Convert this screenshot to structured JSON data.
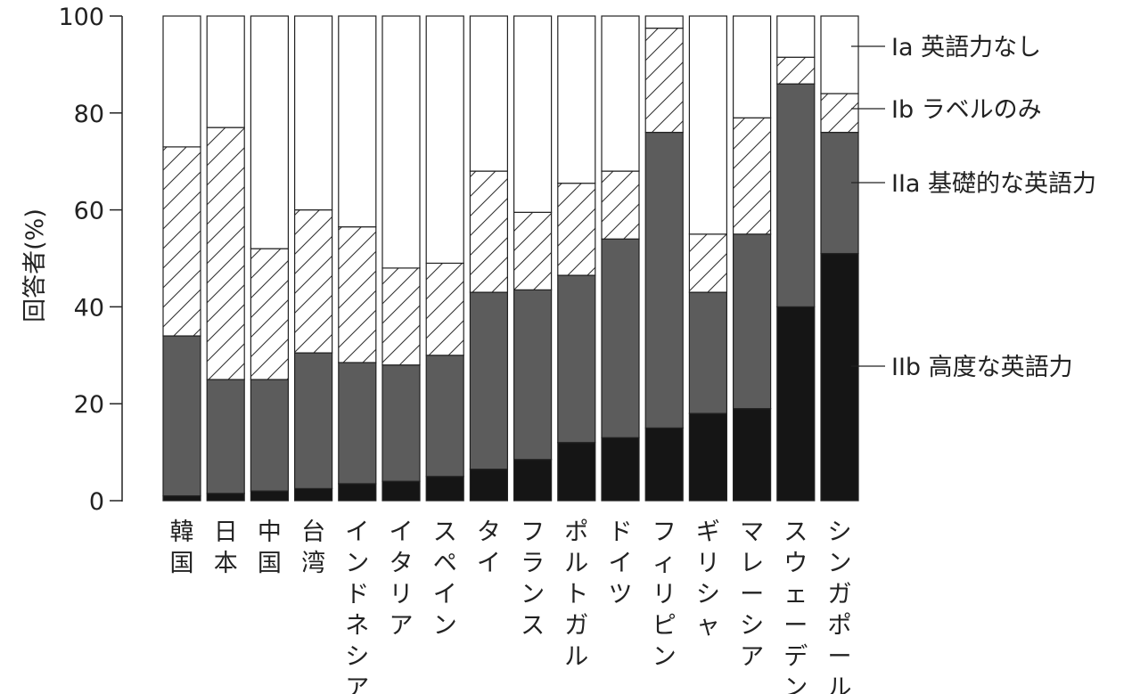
{
  "chart_data": {
    "type": "bar",
    "stacked": true,
    "ylabel": "回答者(%)",
    "ylim": [
      0,
      100
    ],
    "yticks": [
      0,
      20,
      40,
      60,
      80,
      100
    ],
    "grid": false,
    "legend_placement": "right",
    "categories": [
      "韓国",
      "日本",
      "中国",
      "台湾",
      "インドネシア",
      "イタリア",
      "スペイン",
      "タイ",
      "フランス",
      "ポルトガル",
      "ドイツ",
      "フィリピン",
      "ギリシャ",
      "マレーシア",
      "スウェーデン",
      "シンガポール"
    ],
    "series": [
      {
        "name": "IIb 高度な英語力",
        "fill": "#151515",
        "values": [
          1,
          1.5,
          2,
          2.5,
          3.5,
          4,
          5,
          6.5,
          8.5,
          12,
          13,
          15,
          18,
          19,
          40,
          51
        ]
      },
      {
        "name": "IIa 基礎的な英語力",
        "fill": "#5c5c5c",
        "values": [
          33,
          23.5,
          23,
          28,
          25,
          24,
          25,
          36.5,
          35,
          34.5,
          41,
          61,
          25,
          36,
          46,
          25
        ]
      },
      {
        "name": "Ib ラベルのみ",
        "fill": "hatch",
        "values": [
          39,
          52,
          27,
          29.5,
          28,
          20,
          19,
          25,
          16,
          19,
          14,
          21.5,
          12,
          24,
          5.5,
          8
        ]
      },
      {
        "name": "Ia 英語力なし",
        "fill": "#ffffff",
        "values": [
          27,
          23,
          48,
          40,
          43.5,
          52,
          51,
          32,
          40.5,
          34.5,
          32,
          2.5,
          45,
          21,
          8.5,
          16
        ]
      }
    ]
  }
}
